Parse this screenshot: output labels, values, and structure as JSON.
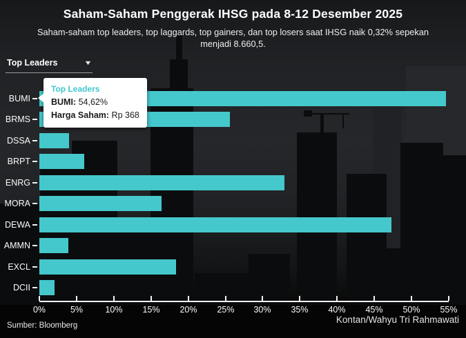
{
  "header": {
    "title": "Saham-Saham Penggerak IHSG pada 8-12 Desember 2025",
    "subtitle": "Saham-saham top leaders, top laggards, top gainers, dan top losers saat IHSG naik 0,32% sepekan menjadi 8.660,5."
  },
  "filter": {
    "selected": "Top Leaders"
  },
  "icons": {
    "dropdown_caret": "▼"
  },
  "tooltip": {
    "title": "Top Leaders",
    "stock_label": "BUMI:",
    "stock_value": " 54,62%",
    "price_label": "Harga Saham:",
    "price_value": " Rp 368"
  },
  "chart_data": {
    "type": "bar",
    "orientation": "horizontal",
    "title": "Saham-Saham Penggerak IHSG pada 8-12 Desember 2025",
    "subtitle": "Saham-saham top leaders, top laggards, top gainers, dan top losers saat IHSG naik 0,32% sepekan menjadi 8.660,5.",
    "categories": [
      "BUMI",
      "BRMS",
      "DSSA",
      "BRPT",
      "ENRG",
      "MORA",
      "DEWA",
      "AMMN",
      "EXCL",
      "DCII"
    ],
    "values": [
      54.62,
      25.6,
      4.0,
      6.0,
      32.9,
      16.4,
      47.3,
      3.9,
      18.4,
      2.0
    ],
    "unit": "%",
    "xlim": [
      0,
      55
    ],
    "x_ticks": [
      "0%",
      "5%",
      "10%",
      "15%",
      "20%",
      "25%",
      "30%",
      "35%",
      "40%",
      "45%",
      "50%",
      "55%"
    ],
    "bar_color": "#45c8cb",
    "grid": false,
    "legend": false,
    "highlight": {
      "category": "BUMI",
      "value_label": "54,62%",
      "price": "Rp 368"
    }
  },
  "footer": {
    "source": "Sumber: Bloomberg",
    "credit": "Kontan/Wahyu Tri Rahmawati"
  }
}
